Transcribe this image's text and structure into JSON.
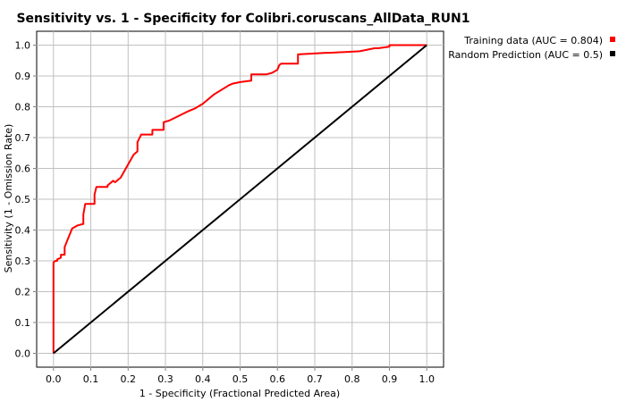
{
  "chart_data": {
    "type": "line",
    "title": "Sensitivity vs. 1 - Specificity for Colibri.coruscans_AllData_RUN1",
    "xlabel": "1 - Specificity  (Fractional Predicted Area)",
    "ylabel": "Sensitivity  (1 - Omission Rate)",
    "xlim": [
      0.0,
      1.0
    ],
    "ylim": [
      0.0,
      1.0
    ],
    "xticks": [
      "0.0",
      "0.1",
      "0.2",
      "0.3",
      "0.4",
      "0.5",
      "0.6",
      "0.7",
      "0.8",
      "0.9",
      "1.0"
    ],
    "yticks": [
      "0.0",
      "0.1",
      "0.2",
      "0.3",
      "0.4",
      "0.5",
      "0.6",
      "0.7",
      "0.8",
      "0.9",
      "1.0"
    ],
    "grid": true,
    "legend_position": "top-right outside plot",
    "series": [
      {
        "name": "Training data (AUC = 0.804)",
        "color": "#ff0000",
        "x": [
          0.0,
          0.0,
          0.005,
          0.01,
          0.01,
          0.02,
          0.02,
          0.03,
          0.03,
          0.035,
          0.05,
          0.065,
          0.08,
          0.08,
          0.085,
          0.11,
          0.11,
          0.115,
          0.145,
          0.145,
          0.16,
          0.165,
          0.18,
          0.215,
          0.225,
          0.225,
          0.235,
          0.235,
          0.265,
          0.265,
          0.295,
          0.295,
          0.31,
          0.36,
          0.38,
          0.4,
          0.43,
          0.47,
          0.48,
          0.5,
          0.53,
          0.53,
          0.57,
          0.585,
          0.6,
          0.605,
          0.61,
          0.655,
          0.655,
          0.73,
          0.74,
          0.82,
          0.86,
          0.87,
          0.9,
          0.9,
          1.0
        ],
        "y": [
          0.0,
          0.295,
          0.3,
          0.3,
          0.305,
          0.31,
          0.32,
          0.32,
          0.345,
          0.36,
          0.405,
          0.415,
          0.42,
          0.45,
          0.485,
          0.485,
          0.515,
          0.54,
          0.54,
          0.545,
          0.56,
          0.555,
          0.57,
          0.645,
          0.655,
          0.685,
          0.71,
          0.71,
          0.71,
          0.725,
          0.725,
          0.75,
          0.755,
          0.785,
          0.795,
          0.81,
          0.84,
          0.87,
          0.875,
          0.88,
          0.885,
          0.905,
          0.905,
          0.91,
          0.92,
          0.935,
          0.94,
          0.94,
          0.97,
          0.975,
          0.975,
          0.98,
          0.99,
          0.99,
          0.995,
          1.0,
          1.0
        ]
      },
      {
        "name": "Random Prediction (AUC = 0.5)",
        "color": "#000000",
        "x": [
          0.0,
          1.0
        ],
        "y": [
          0.0,
          1.0
        ]
      }
    ]
  }
}
